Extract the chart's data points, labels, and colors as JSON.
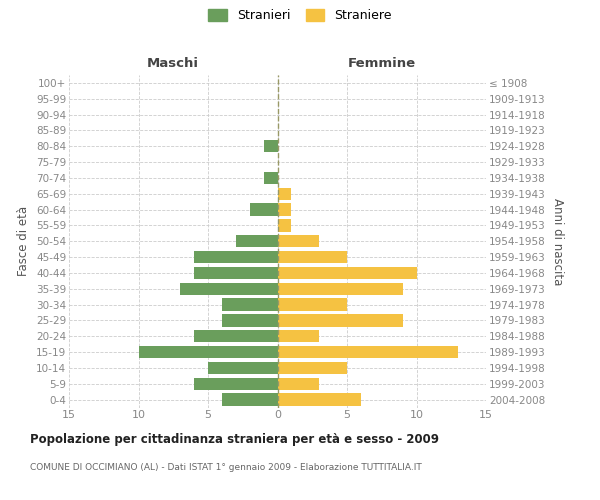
{
  "age_groups": [
    "0-4",
    "5-9",
    "10-14",
    "15-19",
    "20-24",
    "25-29",
    "30-34",
    "35-39",
    "40-44",
    "45-49",
    "50-54",
    "55-59",
    "60-64",
    "65-69",
    "70-74",
    "75-79",
    "80-84",
    "85-89",
    "90-94",
    "95-99",
    "100+"
  ],
  "birth_years": [
    "2004-2008",
    "1999-2003",
    "1994-1998",
    "1989-1993",
    "1984-1988",
    "1979-1983",
    "1974-1978",
    "1969-1973",
    "1964-1968",
    "1959-1963",
    "1954-1958",
    "1949-1953",
    "1944-1948",
    "1939-1943",
    "1934-1938",
    "1929-1933",
    "1924-1928",
    "1919-1923",
    "1914-1918",
    "1909-1913",
    "≤ 1908"
  ],
  "maschi": [
    4,
    6,
    5,
    10,
    6,
    4,
    4,
    7,
    6,
    6,
    3,
    0,
    2,
    0,
    1,
    0,
    1,
    0,
    0,
    0,
    0
  ],
  "femmine": [
    6,
    3,
    5,
    13,
    3,
    9,
    5,
    9,
    10,
    5,
    3,
    1,
    1,
    1,
    0,
    0,
    0,
    0,
    0,
    0,
    0
  ],
  "color_maschi": "#6a9e5c",
  "color_femmine": "#f5c242",
  "title": "Popolazione per cittadinanza straniera per età e sesso - 2009",
  "subtitle": "COMUNE DI OCCIMIANO (AL) - Dati ISTAT 1° gennaio 2009 - Elaborazione TUTTITALIA.IT",
  "header_left": "Maschi",
  "header_right": "Femmine",
  "ylabel_left": "Fasce di età",
  "ylabel_right": "Anni di nascita",
  "xlim": 15,
  "legend_stranieri": "Stranieri",
  "legend_straniere": "Straniere",
  "bg_color": "#ffffff",
  "grid_color": "#cccccc",
  "tick_color": "#888888"
}
